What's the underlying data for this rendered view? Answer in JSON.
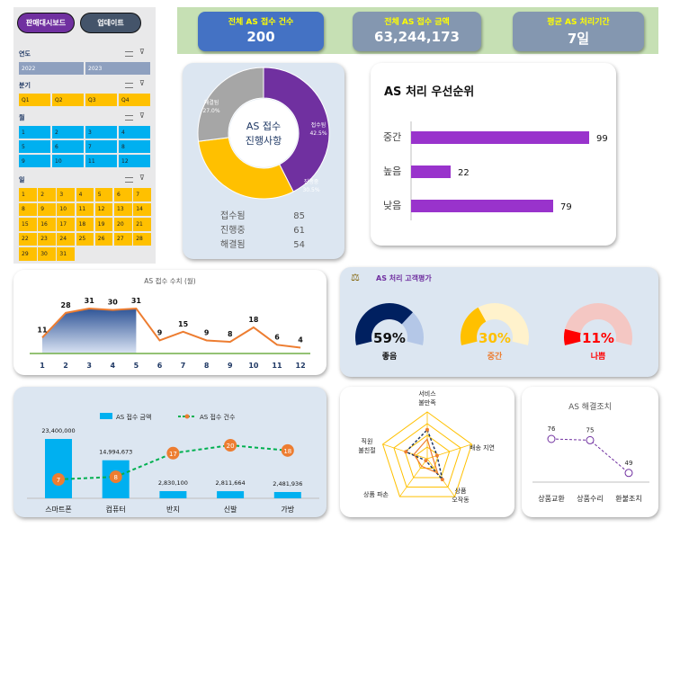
{
  "buttons": {
    "dashboard": "판매대시보드",
    "update": "업데이트"
  },
  "slicers": {
    "year": {
      "title": "연도",
      "items": [
        "2022",
        "2023"
      ]
    },
    "quarter": {
      "title": "분기",
      "items": [
        "Q1",
        "Q2",
        "Q3",
        "Q4"
      ]
    },
    "month": {
      "title": "월",
      "items": [
        "1",
        "2",
        "3",
        "4",
        "5",
        "6",
        "7",
        "8",
        "9",
        "10",
        "11",
        "12"
      ]
    },
    "day": {
      "title": "일",
      "items": [
        "1",
        "2",
        "3",
        "4",
        "5",
        "6",
        "7",
        "8",
        "9",
        "10",
        "11",
        "12",
        "13",
        "14",
        "15",
        "16",
        "17",
        "18",
        "19",
        "20",
        "21",
        "22",
        "23",
        "24",
        "25",
        "26",
        "27",
        "28",
        "29",
        "30",
        "31"
      ]
    }
  },
  "kpis": [
    {
      "label": "전체 AS 접수 건수",
      "value": "200",
      "bg": "#4472c4",
      "label_color": "#ffff00"
    },
    {
      "label": "전체 AS 접수 금액",
      "value": "63,244,173",
      "bg": "#8497b0",
      "label_color": "#ffff00"
    },
    {
      "label": "평균 AS 처리기간",
      "value": "7일",
      "bg": "#8497b0",
      "label_color": "#ffff00"
    }
  ],
  "chart_data": [
    {
      "type": "pie",
      "title": "AS 접수 진행사항",
      "categories": [
        "접수됨",
        "진행중",
        "해결됨"
      ],
      "values": [
        85,
        61,
        54
      ],
      "percent_labels": [
        "42.5%",
        "30.5%",
        "27.0%"
      ],
      "colors": [
        "#7030a0",
        "#ffc000",
        "#a6a6a6"
      ]
    },
    {
      "type": "bar",
      "title": "AS 처리 우선순위",
      "categories": [
        "중간",
        "높음",
        "낮음"
      ],
      "values": [
        99,
        22,
        79
      ],
      "color": "#9933cc"
    },
    {
      "type": "area",
      "title": "AS 접수 수치 (월)",
      "categories": [
        "1",
        "2",
        "3",
        "4",
        "5",
        "6",
        "7",
        "8",
        "9",
        "10",
        "11",
        "12"
      ],
      "values": [
        11,
        28,
        31,
        30,
        31,
        9,
        15,
        9,
        8,
        18,
        6,
        4
      ]
    },
    {
      "type": "pie",
      "title": "AS 처리 고객평가",
      "categories": [
        "좋음",
        "중간",
        "나쁨"
      ],
      "values": [
        59,
        30,
        11
      ],
      "value_labels": [
        "59%",
        "30%",
        "11%"
      ],
      "colors": [
        "#002060",
        "#ffc000",
        "#ff0000"
      ],
      "track_colors": [
        "#b4c7e7",
        "#fff2cc",
        "#f4c7c3"
      ]
    },
    {
      "type": "bar",
      "series": [
        {
          "name": "AS 접수 금액",
          "values": [
            23400000,
            14994673,
            2830100,
            2811664,
            2481936
          ]
        },
        {
          "name": "AS 접수 건수",
          "values": [
            7,
            8,
            17,
            20,
            18
          ]
        }
      ],
      "categories": [
        "스마트폰",
        "컴퓨터",
        "반지",
        "신발",
        "가방"
      ],
      "value_labels": [
        "23,400,000",
        "14,994,673",
        "2,830,100",
        "2,811,664",
        "2,481,936"
      ]
    },
    {
      "type": "radar",
      "categories": [
        "서비스\n불만족",
        "배송 지연",
        "상품\n오작동",
        "상품 파손",
        "직원\n불친절"
      ]
    },
    {
      "type": "line",
      "title": "AS 해결조치",
      "categories": [
        "상품교환",
        "상품수리",
        "환불조치"
      ],
      "values": [
        76,
        75,
        49
      ]
    }
  ]
}
